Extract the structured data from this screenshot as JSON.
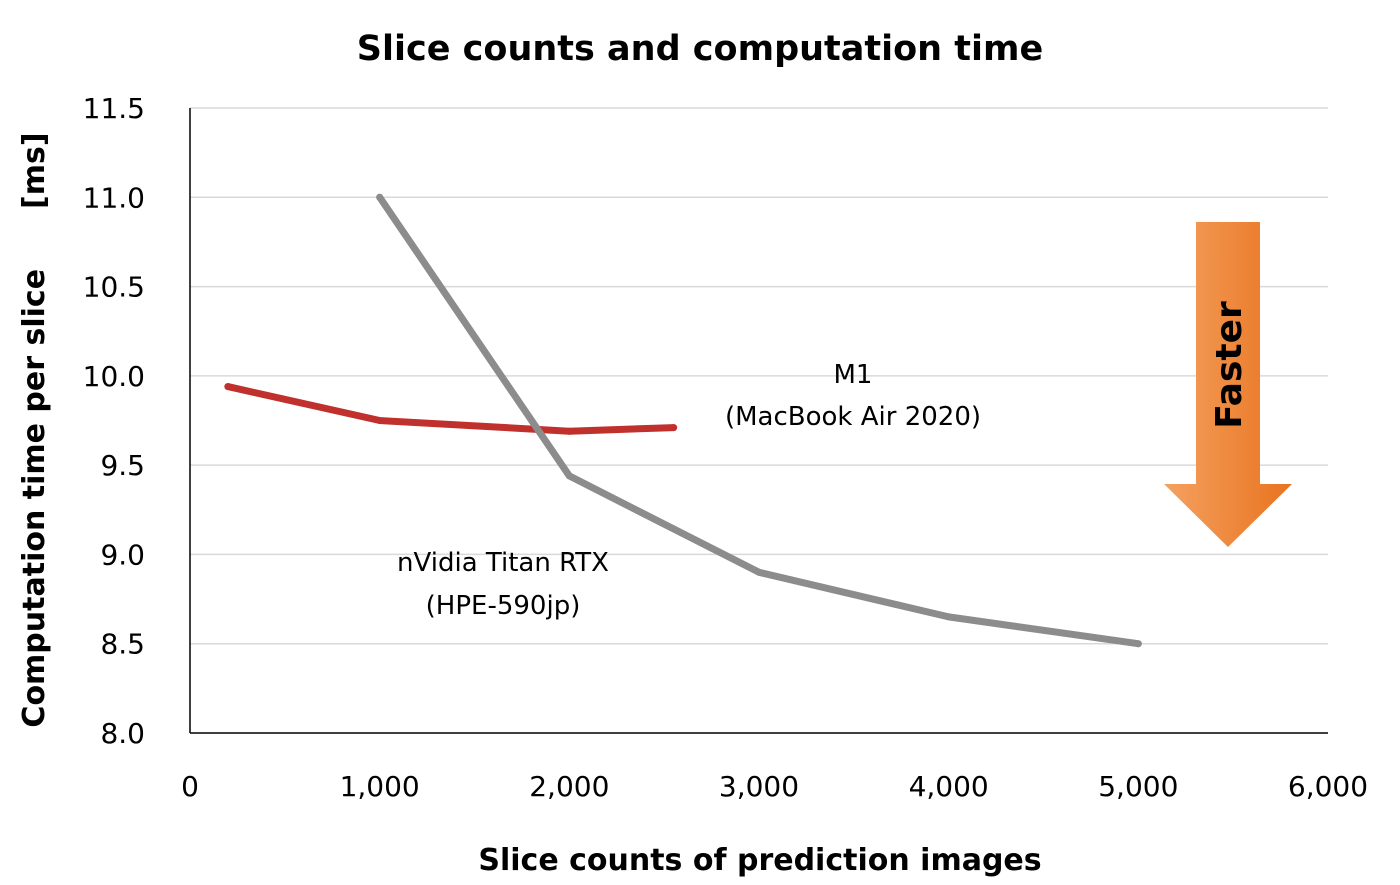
{
  "chart_data": {
    "type": "line",
    "title": "Slice counts and computation time",
    "xlabel": "Slice counts of prediction images",
    "ylabel": "Computation time per slice　　[ms]",
    "xlim": [
      0,
      6000
    ],
    "ylim": [
      8.0,
      11.5
    ],
    "x_ticks": [
      "0",
      "1,000",
      "2,000",
      "3,000",
      "4,000",
      "5,000",
      "6,000"
    ],
    "y_ticks": [
      "8.0",
      "8.5",
      "9.0",
      "9.5",
      "10.0",
      "10.5",
      "11.0",
      "11.5"
    ],
    "grid": "horizontal",
    "series": [
      {
        "name_lines": [
          "M1",
          "(MacBook Air 2020)"
        ],
        "color": "#c0302c",
        "points": [
          [
            200,
            9.94
          ],
          [
            1000,
            9.75
          ],
          [
            2000,
            9.69
          ],
          [
            2550,
            9.71
          ]
        ]
      },
      {
        "name_lines": [
          "nVidia Titan RTX",
          "(HPE-590jp)"
        ],
        "color": "#8c8c8c",
        "points": [
          [
            1000,
            11.0
          ],
          [
            2000,
            9.44
          ],
          [
            3000,
            8.9
          ],
          [
            4000,
            8.65
          ],
          [
            5000,
            8.5
          ]
        ]
      }
    ],
    "annotation": {
      "text": "Faster",
      "direction": "down",
      "color_top": "#f5a160",
      "color_bottom": "#e8731f"
    }
  }
}
